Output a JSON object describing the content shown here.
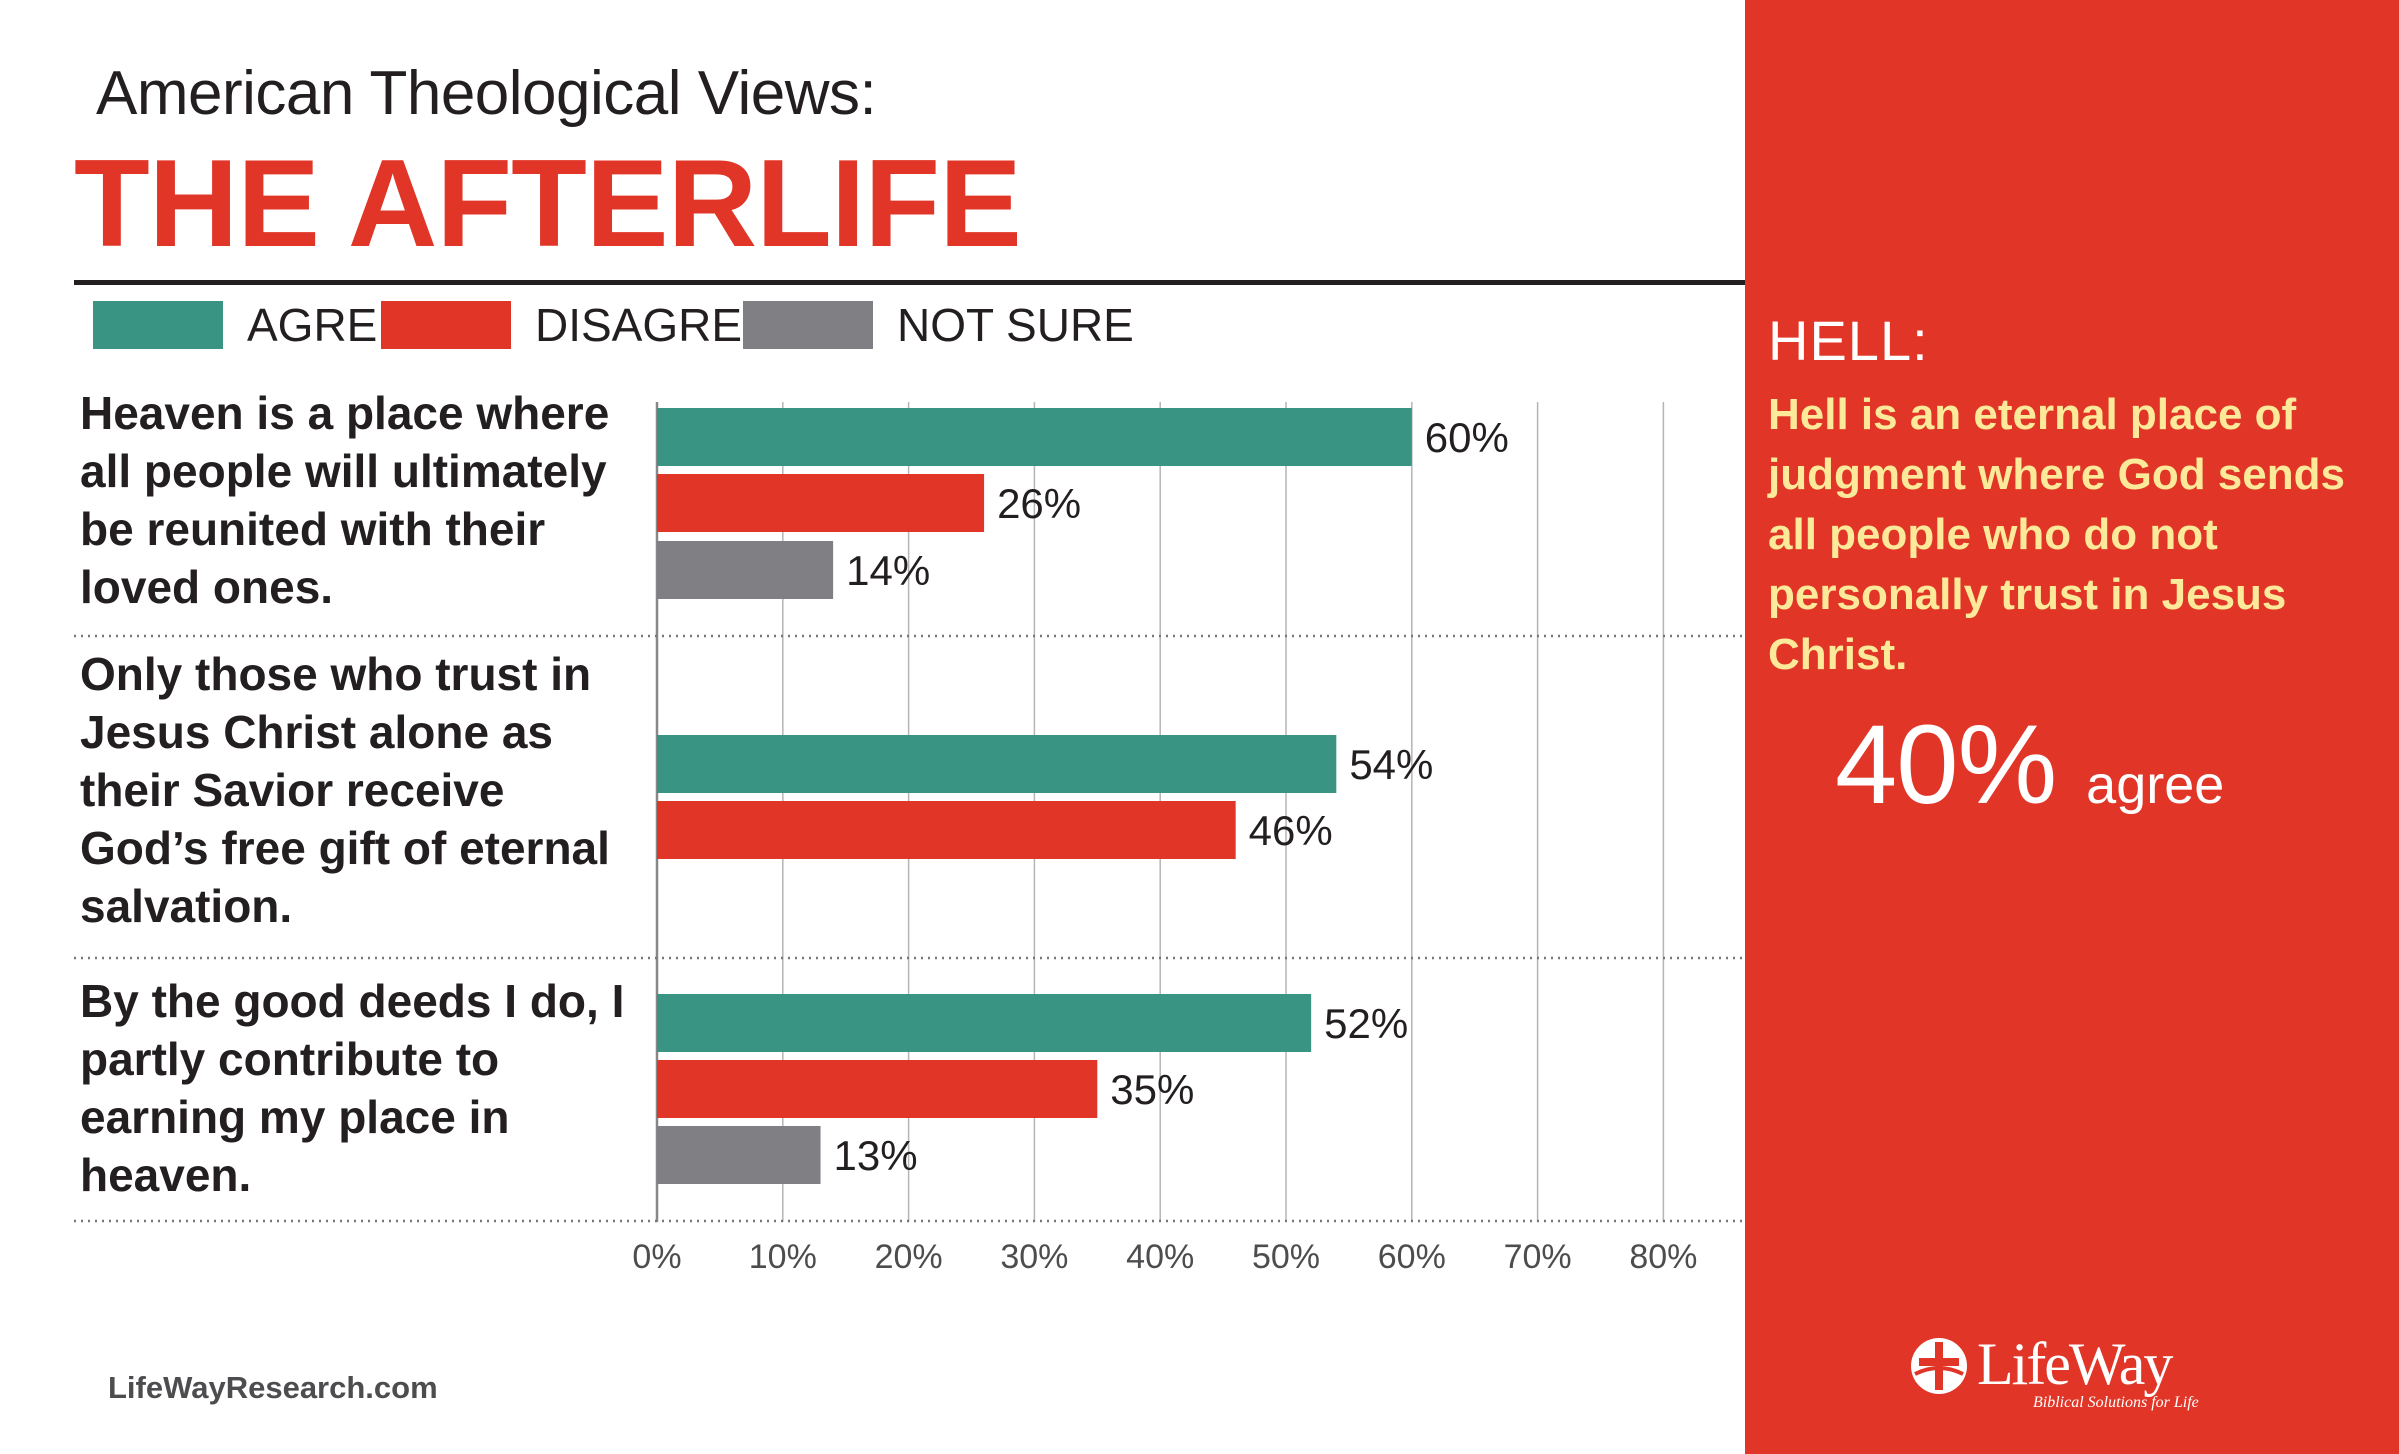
{
  "header": {
    "subtitle": "American Theological Views:",
    "title": "THE AFTERLIFE"
  },
  "colors": {
    "agree": "#3a9484",
    "disagree": "#e03527",
    "not_sure": "#808084",
    "panel_bg": "#e03527",
    "highlight_text": "#fde99a"
  },
  "chart_data": {
    "type": "bar",
    "orientation": "horizontal",
    "categories": [
      "Heaven is a place where all people will ultimately be reunited with their loved ones.",
      "Only those who trust in Jesus Christ alone as their Savior receive God’s free gift of eternal salvation.",
      "By the good deeds I do, I partly contribute to earning my place in heaven."
    ],
    "series": [
      {
        "name": "AGREE",
        "values": [
          60,
          54,
          52
        ]
      },
      {
        "name": "DISAGREE",
        "values": [
          26,
          46,
          35
        ]
      },
      {
        "name": "NOT SURE",
        "values": [
          14,
          null,
          13
        ]
      }
    ],
    "value_labels": [
      [
        "60%",
        "26%",
        "14%"
      ],
      [
        "54%",
        "46%",
        null
      ],
      [
        "52%",
        "35%",
        "13%"
      ]
    ],
    "xlim": [
      0,
      85
    ],
    "x_ticks": [
      0,
      10,
      20,
      30,
      40,
      50,
      60,
      70,
      80
    ],
    "x_tick_labels": [
      "0%",
      "10%",
      "20%",
      "30%",
      "40%",
      "50%",
      "60%",
      "70%",
      "80%"
    ],
    "grid": true,
    "legend_placement": "top-left"
  },
  "source": "LifeWayResearch.com",
  "side_panel": {
    "title": "HELL:",
    "statement": "Hell is an eternal place of judgment where God sends all people who do not personally trust in Jesus Christ.",
    "value": "40%",
    "value_label": "agree"
  },
  "logo": {
    "name": "LifeWay",
    "tagline": "Biblical Solutions for Life"
  }
}
